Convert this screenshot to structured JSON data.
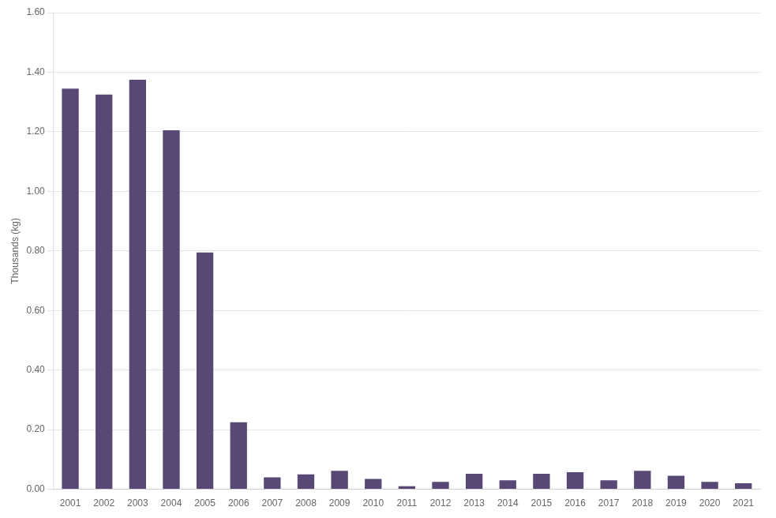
{
  "chart_data": {
    "type": "bar",
    "y_label": "Thousands (kg)",
    "categories": [
      "2001",
      "2002",
      "2003",
      "2004",
      "2005",
      "2006",
      "2007",
      "2008",
      "2009",
      "2010",
      "2011",
      "2012",
      "2013",
      "2014",
      "2015",
      "2016",
      "2017",
      "2018",
      "2019",
      "2020",
      "2021"
    ],
    "values": [
      1.345,
      1.325,
      1.375,
      1.205,
      0.795,
      0.225,
      0.04,
      0.05,
      0.062,
      0.035,
      0.01,
      0.025,
      0.052,
      0.03,
      0.052,
      0.057,
      0.03,
      0.062,
      0.045,
      0.025,
      0.02
    ],
    "color": "#584875",
    "ylim": [
      0,
      1.6
    ],
    "yticks": [
      {
        "value": 0.0,
        "label": "0.00"
      },
      {
        "value": 0.2,
        "label": "0.20"
      },
      {
        "value": 0.4,
        "label": "0.40"
      },
      {
        "value": 0.6,
        "label": "0.60"
      },
      {
        "value": 0.8,
        "label": "0.80"
      },
      {
        "value": 1.0,
        "label": "1.00"
      },
      {
        "value": 1.2,
        "label": "1.20"
      },
      {
        "value": 1.4,
        "label": "1.40"
      },
      {
        "value": 1.6,
        "label": "1.60"
      }
    ],
    "grid": true
  }
}
